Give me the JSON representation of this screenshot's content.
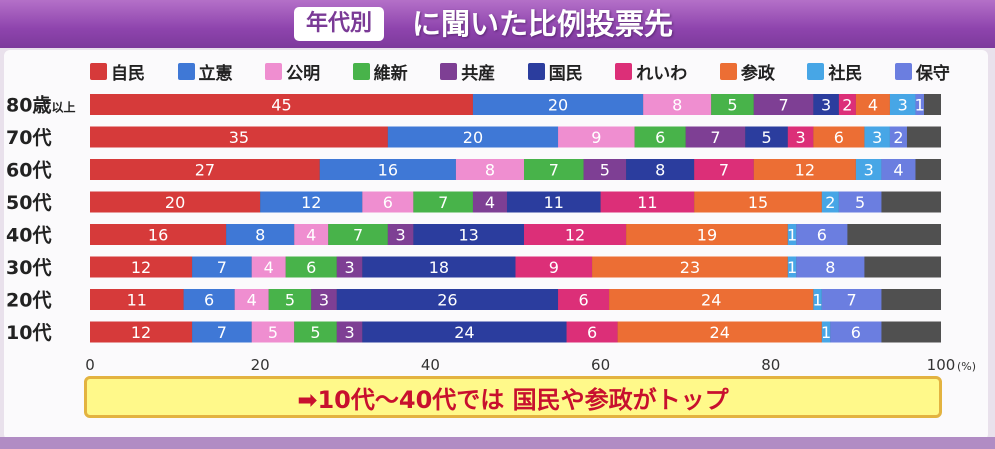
{
  "title": {
    "badge": "年代別",
    "text": "に聞いた比例投票先"
  },
  "banner": {
    "text": "➡10代～40代では 国民や参政がトップ"
  },
  "chart_data": {
    "type": "bar",
    "orientation": "horizontal",
    "stacked": true,
    "xlim": [
      0,
      100
    ],
    "x_ticks": [
      "0",
      "20",
      "40",
      "60",
      "80",
      "100"
    ],
    "x_unit": "(%)",
    "legend_placement": "top",
    "categories": [
      "80歳以上",
      "70代",
      "60代",
      "50代",
      "40代",
      "30代",
      "20代",
      "10代"
    ],
    "category_labels": [
      {
        "main": "80歳",
        "sub": "以上"
      },
      {
        "main": "70代",
        "sub": ""
      },
      {
        "main": "60代",
        "sub": ""
      },
      {
        "main": "50代",
        "sub": ""
      },
      {
        "main": "40代",
        "sub": ""
      },
      {
        "main": "30代",
        "sub": ""
      },
      {
        "main": "20代",
        "sub": ""
      },
      {
        "main": "10代",
        "sub": ""
      }
    ],
    "remainder_color": "#505050",
    "series": [
      {
        "name": "自民",
        "color": "#d63a3a",
        "values": [
          45,
          35,
          27,
          20,
          16,
          12,
          11,
          12
        ]
      },
      {
        "name": "立憲",
        "color": "#3f78d6",
        "values": [
          20,
          20,
          16,
          12,
          8,
          7,
          6,
          7
        ]
      },
      {
        "name": "公明",
        "color": "#ef8ed0",
        "values": [
          8,
          9,
          8,
          6,
          4,
          4,
          4,
          5
        ]
      },
      {
        "name": "維新",
        "color": "#48b34a",
        "values": [
          5,
          6,
          7,
          7,
          7,
          6,
          5,
          5
        ]
      },
      {
        "name": "共産",
        "color": "#7e3f94",
        "values": [
          7,
          7,
          5,
          4,
          3,
          3,
          3,
          3
        ]
      },
      {
        "name": "国民",
        "color": "#2b3d9e",
        "values": [
          3,
          5,
          8,
          11,
          13,
          18,
          26,
          24
        ]
      },
      {
        "name": "れいわ",
        "color": "#dc2f78",
        "values": [
          2,
          3,
          7,
          11,
          12,
          9,
          6,
          6
        ]
      },
      {
        "name": "参政",
        "color": "#ec6e34",
        "values": [
          4,
          6,
          12,
          15,
          19,
          23,
          24,
          24
        ]
      },
      {
        "name": "社民",
        "color": "#47a6e6",
        "values": [
          3,
          3,
          3,
          2,
          1,
          1,
          1,
          1
        ]
      },
      {
        "name": "保守",
        "color": "#6b7ee0",
        "values": [
          1,
          2,
          4,
          5,
          6,
          8,
          7,
          6
        ]
      }
    ]
  }
}
